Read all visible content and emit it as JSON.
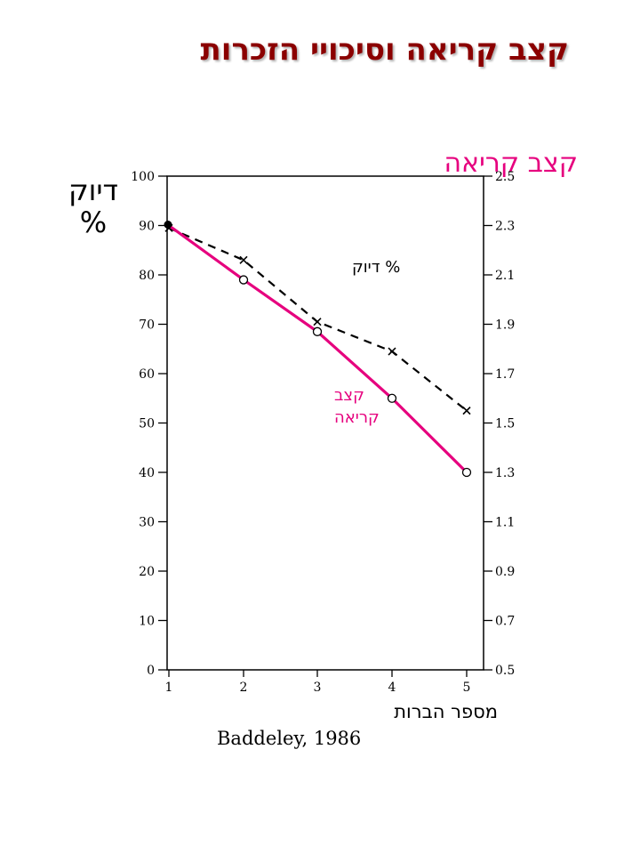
{
  "title": "קצב קריאה וסיכויי הזכרות",
  "citation": "Baddeley, 1986",
  "chart_data": {
    "type": "line",
    "x": [
      1,
      2,
      3,
      4,
      5
    ],
    "xlabel": "מספר הברות",
    "xlim": [
      1,
      5
    ],
    "y_left": {
      "label_line1": "דיוק",
      "label_line2": "%",
      "lim": [
        0,
        100
      ],
      "ticks": [
        "0",
        "10",
        "20",
        "30",
        "40",
        "50",
        "60",
        "70",
        "80",
        "90",
        "100"
      ]
    },
    "y_right": {
      "label": "קצב קריאה",
      "lim": [
        0.5,
        2.5
      ],
      "ticks": [
        "0.5",
        "0.7",
        "0.9",
        "1.1",
        "1.3",
        "1.5",
        "1.7",
        "1.9",
        "2.1",
        "2.3",
        "2.5"
      ]
    },
    "x_ticks": [
      "1",
      "2",
      "3",
      "4",
      "5"
    ],
    "series": [
      {
        "name": "% דיוק",
        "axis": "left",
        "style": "dashed",
        "marker": "x",
        "color": "#000000",
        "values": [
          89.5,
          83,
          70.5,
          64.5,
          52.5
        ]
      },
      {
        "name": "קצב קריאה",
        "axis": "right",
        "style": "solid",
        "marker": "circle",
        "color": "#e6007e",
        "values": [
          2.3,
          2.08,
          1.87,
          1.6,
          1.3
        ]
      }
    ],
    "annotations": {
      "accuracy_label": "% דיוק",
      "rate_label_line1": "קצב",
      "rate_label_line2": "קריאה"
    }
  }
}
